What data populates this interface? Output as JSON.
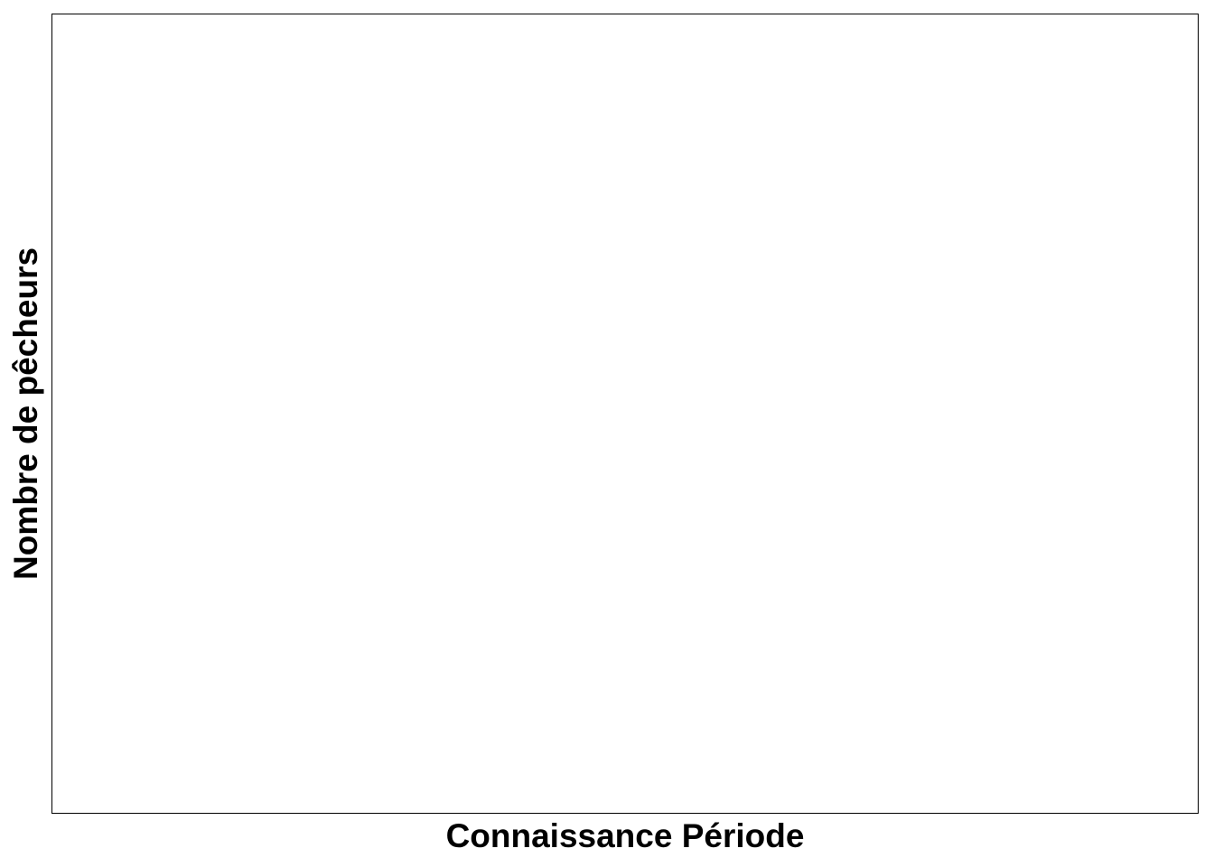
{
  "chart_data": {
    "type": "bar",
    "title": "",
    "xlabel": "Connaissance Période",
    "ylabel": "Nombre de pêcheurs",
    "categories": [],
    "values": [],
    "grid": false,
    "legend": "none"
  }
}
